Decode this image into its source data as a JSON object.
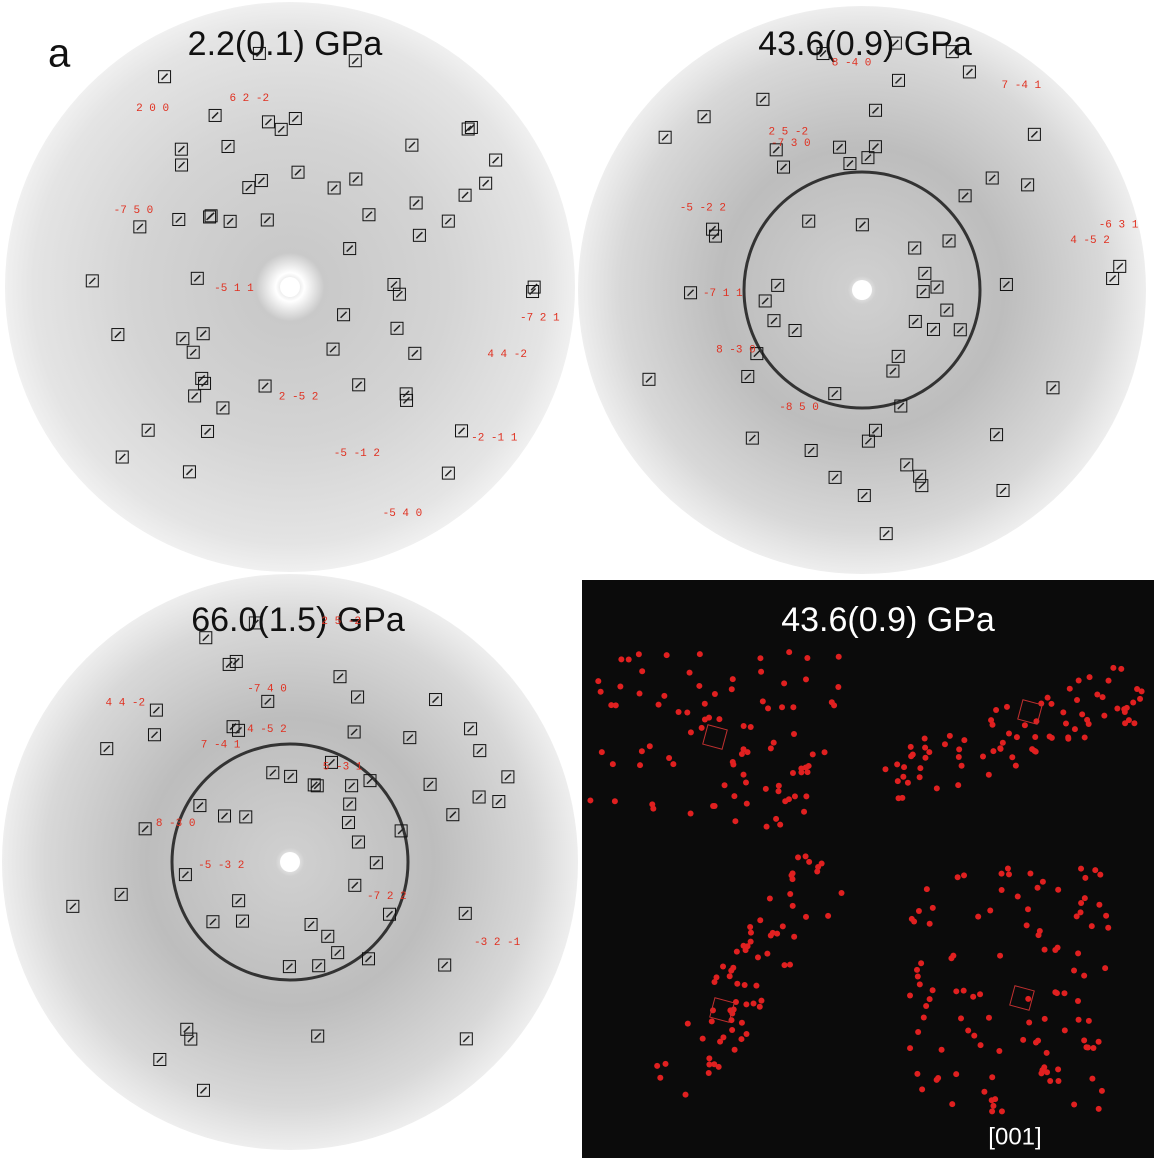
{
  "figure_label": "a",
  "panels": [
    {
      "title": "2.2(0.1) GPa",
      "labels": [
        "2 0 0",
        "-7 2 1",
        "-5 4 0",
        "-7 5 0",
        "2 -5 2",
        "-5 -1 2",
        "4 4 -2",
        "6 2 -2",
        "-5 1 1",
        "-2 -1 1"
      ]
    },
    {
      "title": "43.6(0.9) GPa",
      "labels": [
        "4 -5 2",
        "-7 3 0",
        "-8 5 0",
        "-7 1 1",
        "-5 -2 2",
        "2 5 -2",
        "8 -4 0",
        "7 -4 1",
        "8 -3 0",
        "-6 3 1"
      ]
    },
    {
      "title": "66.0(1.5) GPa",
      "labels": [
        "4 -5 2",
        "4 4 -2",
        "2 5 -2",
        "-7 4 0",
        "5 -3 1",
        "-3 2 -1",
        "7 -4 1",
        "8 -3 0",
        "-5 -3 2",
        "-7 2 2"
      ]
    }
  ],
  "model": {
    "title": "43.6(0.9) GPa",
    "direction": "[001]"
  }
}
